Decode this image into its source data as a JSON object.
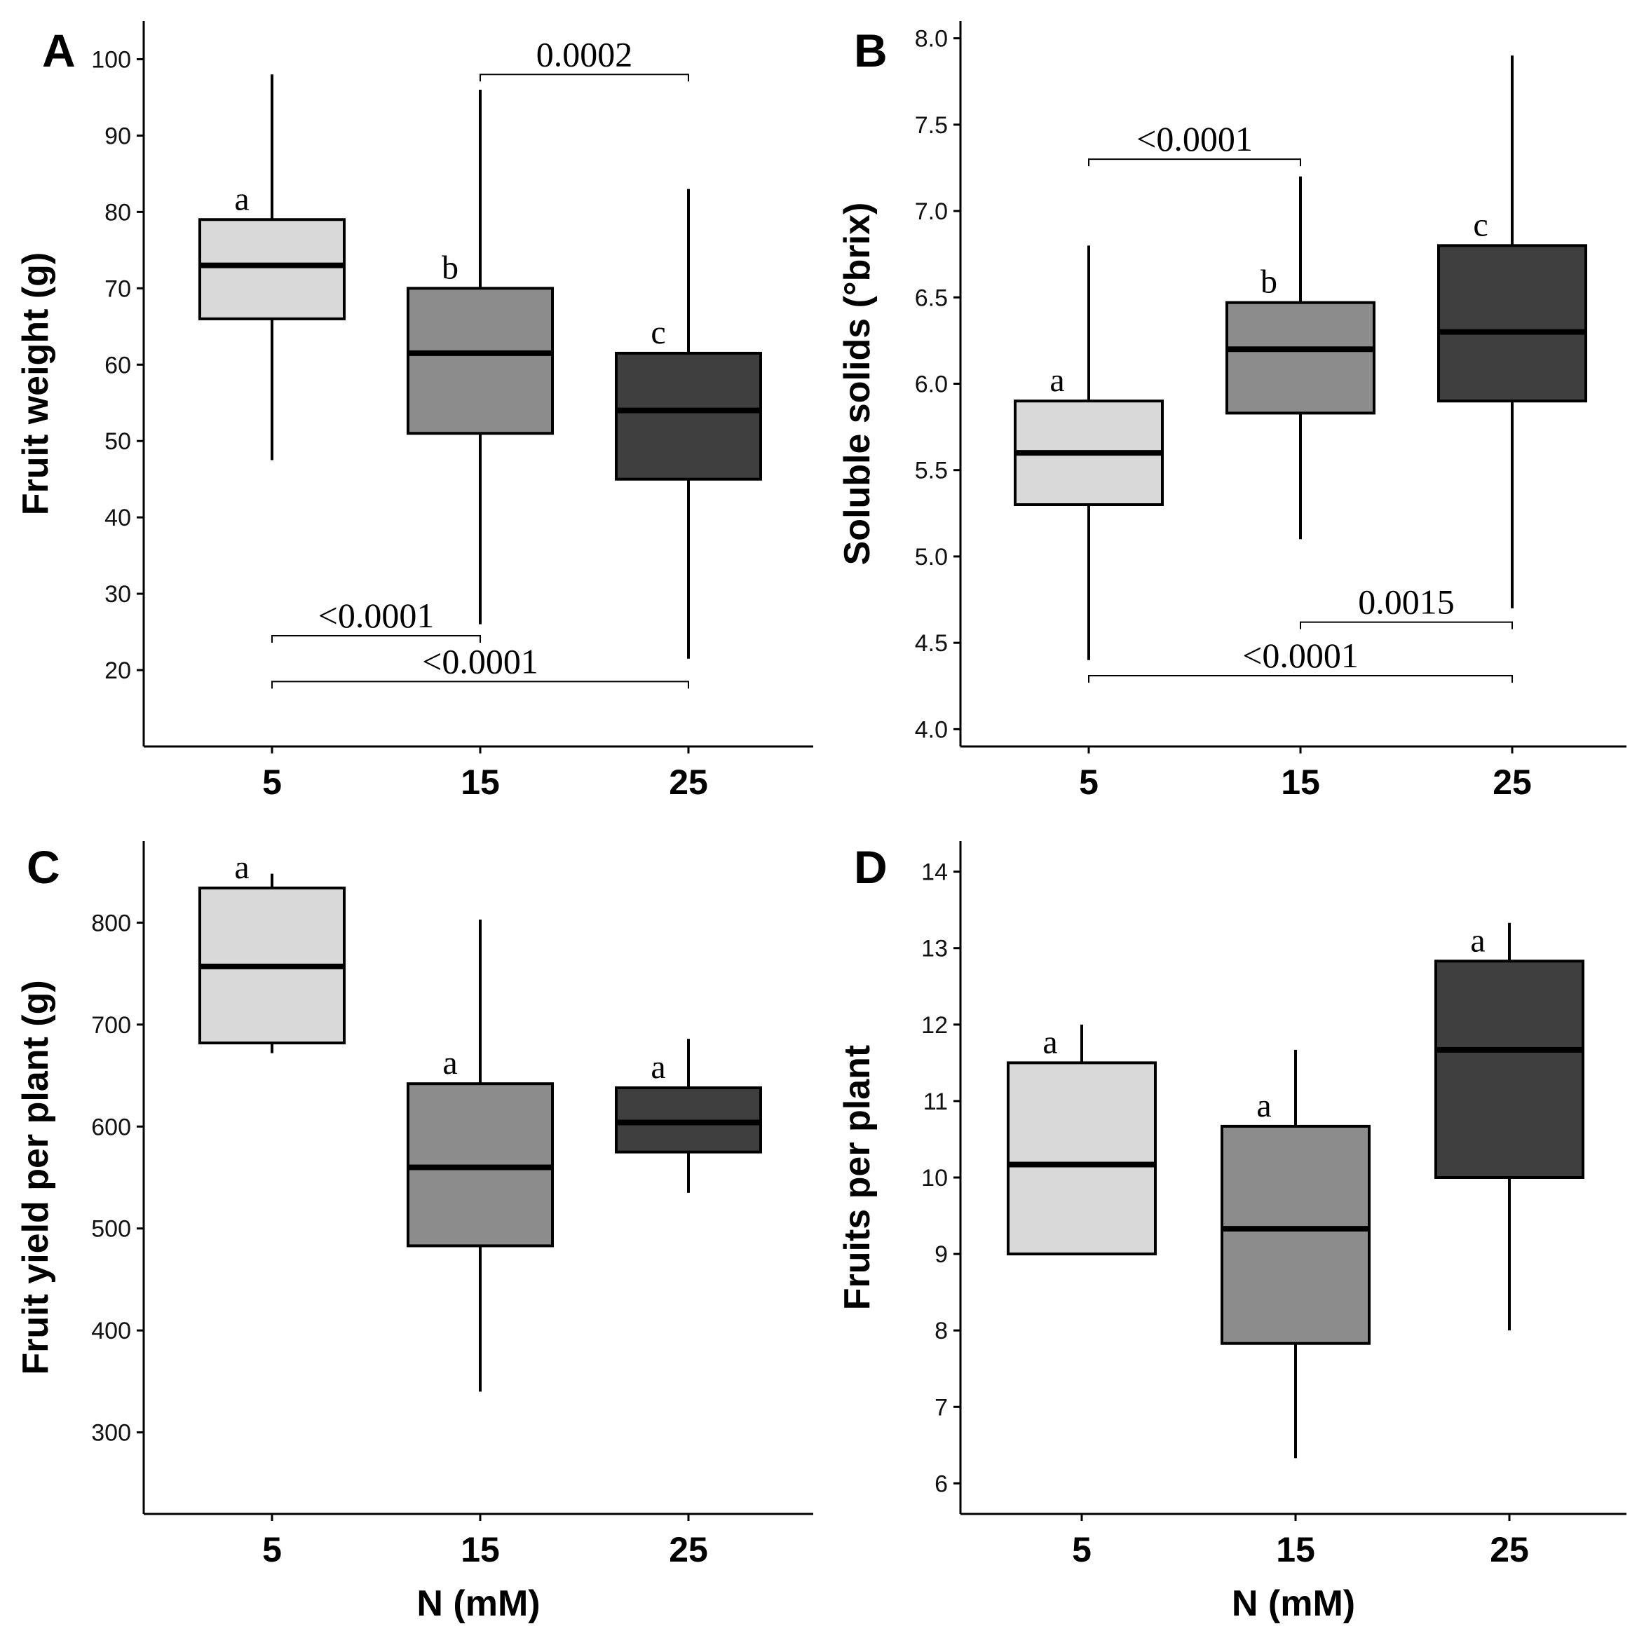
{
  "chart_data": [
    {
      "type": "box",
      "panel": "A",
      "xlabel": "",
      "ylabel": "Fruit weight (g)",
      "ylim": [
        10,
        105
      ],
      "yticks": [
        20,
        30,
        40,
        50,
        60,
        70,
        80,
        90,
        100
      ],
      "categories": [
        "5",
        "15",
        "25"
      ],
      "colors": [
        "#d9d9d9",
        "#8c8c8c",
        "#3f3f3f"
      ],
      "boxes": [
        {
          "category": "5",
          "min": 47.5,
          "q1": 66,
          "median": 73,
          "q3": 79,
          "max": 98
        },
        {
          "category": "15",
          "min": 26,
          "q1": 51,
          "median": 61.5,
          "q3": 70,
          "max": 96
        },
        {
          "category": "25",
          "min": 21.5,
          "q1": 45,
          "median": 54,
          "q3": 61.5,
          "max": 83
        }
      ],
      "letters": [
        "a",
        "b",
        "c"
      ],
      "comparisons": [
        {
          "from": "15",
          "to": "25",
          "label": "0.0002",
          "y": 98,
          "side": "above"
        },
        {
          "from": "5",
          "to": "15",
          "label": "<0.0001",
          "y": 24.5,
          "side": "above"
        },
        {
          "from": "5",
          "to": "25",
          "label": "<0.0001",
          "y": 18.5,
          "side": "above"
        }
      ]
    },
    {
      "type": "box",
      "panel": "B",
      "xlabel": "",
      "ylabel": "Soluble solids (°brix)",
      "ylim": [
        3.9,
        8.1
      ],
      "yticks": [
        "4.0",
        "4.5",
        "5.0",
        "5.5",
        "6.0",
        "6.5",
        "7.0",
        "7.5",
        "8.0"
      ],
      "categories": [
        "5",
        "15",
        "25"
      ],
      "colors": [
        "#d9d9d9",
        "#8c8c8c",
        "#3f3f3f"
      ],
      "boxes": [
        {
          "category": "5",
          "min": 4.4,
          "q1": 5.3,
          "median": 5.6,
          "q3": 5.9,
          "max": 6.8
        },
        {
          "category": "15",
          "min": 5.1,
          "q1": 5.83,
          "median": 6.2,
          "q3": 6.47,
          "max": 7.2
        },
        {
          "category": "25",
          "min": 4.7,
          "q1": 5.9,
          "median": 6.3,
          "q3": 6.8,
          "max": 7.9
        }
      ],
      "letters": [
        "a",
        "b",
        "c"
      ],
      "comparisons": [
        {
          "from": "5",
          "to": "15",
          "label": "<0.0001",
          "y": 7.3,
          "side": "above"
        },
        {
          "from": "15",
          "to": "25",
          "label": "0.0015",
          "y": 4.62,
          "side": "above"
        },
        {
          "from": "5",
          "to": "25",
          "label": "<0.0001",
          "y": 4.31,
          "side": "above"
        }
      ]
    },
    {
      "type": "box",
      "panel": "C",
      "xlabel": "N (mM)",
      "ylabel": "Fruit yield per plant (g)",
      "ylim": [
        220,
        880
      ],
      "yticks": [
        300,
        400,
        500,
        600,
        700,
        800
      ],
      "categories": [
        "5",
        "15",
        "25"
      ],
      "colors": [
        "#d9d9d9",
        "#8c8c8c",
        "#3f3f3f"
      ],
      "boxes": [
        {
          "category": "5",
          "min": 672,
          "q1": 682,
          "median": 757,
          "q3": 834,
          "max": 848
        },
        {
          "category": "15",
          "min": 340,
          "q1": 483,
          "median": 560,
          "q3": 642,
          "max": 803
        },
        {
          "category": "25",
          "min": 535,
          "q1": 575,
          "median": 604,
          "q3": 638,
          "max": 686
        }
      ],
      "letters": [
        "a",
        "a",
        "a"
      ],
      "comparisons": []
    },
    {
      "type": "box",
      "panel": "D",
      "xlabel": "N (mM)",
      "ylabel": "Fruits per plant",
      "ylim": [
        5.6,
        14.4
      ],
      "yticks": [
        6,
        7,
        8,
        9,
        10,
        11,
        12,
        13,
        14
      ],
      "categories": [
        "5",
        "15",
        "25"
      ],
      "colors": [
        "#d9d9d9",
        "#8c8c8c",
        "#3f3f3f"
      ],
      "boxes": [
        {
          "category": "5",
          "min": 9,
          "q1": 9,
          "median": 10.17,
          "q3": 11.5,
          "max": 12
        },
        {
          "category": "15",
          "min": 6.33,
          "q1": 7.83,
          "median": 9.33,
          "q3": 10.67,
          "max": 11.67
        },
        {
          "category": "25",
          "min": 8,
          "q1": 10,
          "median": 11.67,
          "q3": 12.83,
          "max": 13.33
        }
      ],
      "letters": [
        "a",
        "a",
        "a"
      ],
      "comparisons": []
    }
  ]
}
